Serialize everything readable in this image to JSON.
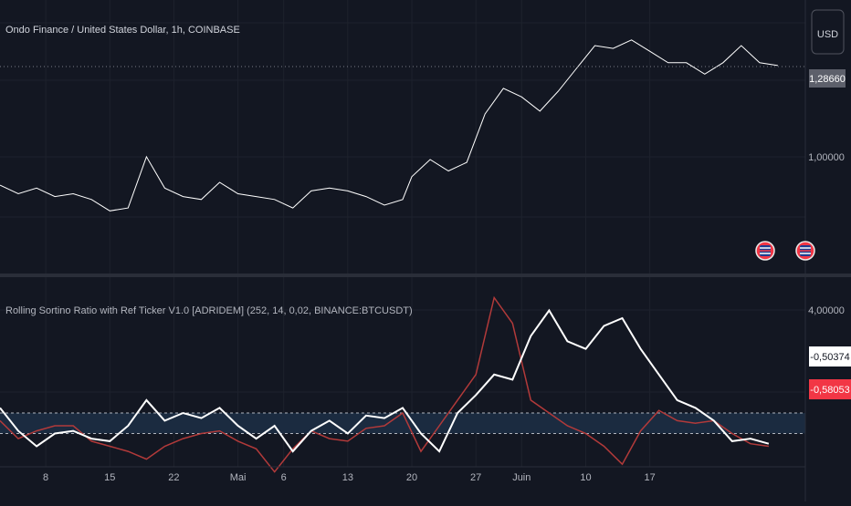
{
  "title": "Ondo Finance / United States Dollar, 1h, COINBASE",
  "indicator_title": "Rolling Sortino Ratio with Ref Ticker V1.0 [ADRIDEM] (252, 14, 0,02, BINANCE:BTCUSDT)",
  "currency_button": "USD",
  "colors": {
    "background": "#131722",
    "grid": "#1e222d",
    "price_line": "#ffffff",
    "sortino_line": "#ffffff",
    "ref_line": "#b23a3a",
    "band_fill": "#1b2b40",
    "badge_red": "#f23645",
    "badge_border": "#e8e8e8"
  },
  "icons": [
    "flag-icon",
    "flag-icon"
  ],
  "chart_data": [
    {
      "type": "line",
      "name": "price-pane",
      "ylim": [
        0.56,
        1.52
      ],
      "y_ticks": [
        "1,00000"
      ],
      "last_value_label": "1,28660",
      "last_value": 1.2866,
      "series": [
        {
          "x": [
            0,
            2,
            4,
            6,
            8,
            10,
            12,
            14,
            16,
            18,
            20,
            22,
            24,
            26,
            28,
            30,
            32,
            34,
            36,
            38,
            40,
            42,
            44,
            45,
            47,
            49,
            51,
            53,
            55,
            57,
            59,
            61,
            63,
            65,
            67,
            69,
            71,
            73,
            75,
            77,
            79,
            81,
            83,
            85
          ],
          "y": [
            0.87,
            0.84,
            0.86,
            0.83,
            0.84,
            0.82,
            0.78,
            0.79,
            0.97,
            0.86,
            0.83,
            0.82,
            0.88,
            0.84,
            0.83,
            0.82,
            0.79,
            0.85,
            0.86,
            0.85,
            0.83,
            0.8,
            0.82,
            0.9,
            0.96,
            0.92,
            0.95,
            1.12,
            1.21,
            1.18,
            1.13,
            1.2,
            1.28,
            1.36,
            1.35,
            1.38,
            1.34,
            1.3,
            1.3,
            1.26,
            1.3,
            1.36,
            1.3,
            1.29
          ]
        }
      ]
    },
    {
      "type": "line",
      "name": "indicator-pane",
      "ylim": [
        -2.6,
        4.8
      ],
      "y_ticks": [
        "4,00000"
      ],
      "hlines": [
        -0.5,
        -1.3
      ],
      "value_labels": [
        "-0,50374",
        "-0,58053"
      ],
      "x_tick_labels": [
        "8",
        "15",
        "22",
        "Mai",
        "6",
        "13",
        "20",
        "27",
        "Juin",
        "10",
        "17"
      ],
      "series": [
        {
          "x": [
            0,
            2,
            4,
            6,
            8,
            10,
            12,
            14,
            16,
            18,
            20,
            22,
            24,
            26,
            28,
            30,
            32,
            34,
            36,
            38,
            40,
            42,
            44,
            46,
            48,
            50,
            52,
            54,
            56,
            58,
            60,
            62,
            64,
            66,
            68,
            70,
            72,
            74,
            76,
            78,
            80,
            82,
            84
          ],
          "y": [
            -0.3,
            -1.2,
            -1.8,
            -1.3,
            -1.2,
            -1.5,
            -1.6,
            -1.0,
            0.0,
            -0.8,
            -0.5,
            -0.7,
            -0.3,
            -1.0,
            -1.5,
            -1.0,
            -2.0,
            -1.2,
            -0.8,
            -1.3,
            -0.6,
            -0.7,
            -0.3,
            -1.3,
            -2.0,
            -0.5,
            0.2,
            1.0,
            0.8,
            2.5,
            3.5,
            2.3,
            2.0,
            2.9,
            3.2,
            2.0,
            1.0,
            0.0,
            -0.3,
            -0.8,
            -1.6,
            -1.5,
            -1.7
          ]
        },
        {
          "x": [
            0,
            2,
            4,
            6,
            8,
            10,
            12,
            14,
            16,
            18,
            20,
            22,
            24,
            26,
            28,
            30,
            32,
            34,
            36,
            38,
            40,
            42,
            44,
            46,
            48,
            50,
            52,
            54,
            56,
            58,
            60,
            62,
            64,
            66,
            68,
            70,
            72,
            74,
            76,
            78,
            80,
            82,
            84
          ],
          "y": [
            -0.8,
            -1.5,
            -1.2,
            -1.0,
            -1.0,
            -1.6,
            -1.8,
            -2.0,
            -2.3,
            -1.8,
            -1.5,
            -1.3,
            -1.2,
            -1.6,
            -1.9,
            -2.8,
            -1.9,
            -1.2,
            -1.5,
            -1.6,
            -1.1,
            -1.0,
            -0.5,
            -2.0,
            -1.0,
            0.0,
            1.0,
            4.0,
            3.0,
            0.0,
            -0.5,
            -1.0,
            -1.3,
            -1.8,
            -2.5,
            -1.2,
            -0.4,
            -0.8,
            -0.9,
            -0.8,
            -1.3,
            -1.7,
            -1.8
          ]
        }
      ]
    }
  ]
}
